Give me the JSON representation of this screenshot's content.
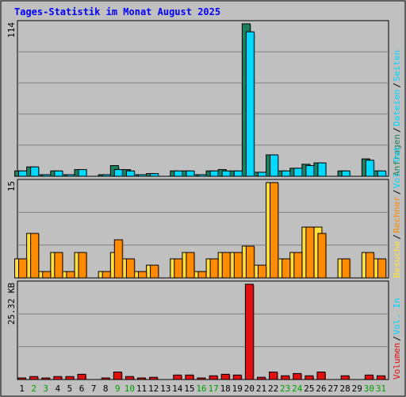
{
  "chart_data": {
    "type": "bar",
    "title": "Tages-Statistik im Monat August 2025",
    "days": [
      "1",
      "2",
      "3",
      "4",
      "5",
      "6",
      "7",
      "8",
      "9",
      "10",
      "11",
      "12",
      "13",
      "14",
      "15",
      "16",
      "17",
      "18",
      "19",
      "20",
      "21",
      "22",
      "23",
      "24",
      "25",
      "26",
      "27",
      "28",
      "29",
      "30",
      "31"
    ],
    "weekend_days": [
      "2",
      "3",
      "9",
      "10",
      "16",
      "17",
      "23",
      "24",
      "30",
      "31"
    ],
    "colors": {
      "anfragen": "#1f8060",
      "dateien": "#00d8ff",
      "besuche": "#ffe040",
      "rechner": "#ff8c00",
      "volumen": "#e01010",
      "day_weekday": "#000000",
      "day_weekend": "#00a000",
      "background": "#c0c0c0",
      "grid": "#808080"
    },
    "panels": [
      {
        "id": "requests",
        "ymax_label": "114",
        "ymax": 114,
        "series": [
          {
            "name": "Anfragen",
            "key": "anfragen",
            "values": [
              4,
              7,
              1,
              4,
              1,
              5,
              0,
              1,
              8,
              5,
              1,
              2,
              0,
              4,
              4,
              1,
              4,
              5,
              4,
              114,
              3,
              16,
              4,
              6,
              9,
              10,
              0,
              4,
              0,
              13,
              4
            ]
          },
          {
            "name": "Dateien",
            "key": "dateien",
            "values": [
              4,
              7,
              1,
              4,
              1,
              5,
              0,
              1,
              5,
              4,
              1,
              2,
              0,
              4,
              4,
              1,
              4,
              4,
              4,
              108,
              3,
              16,
              4,
              6,
              8,
              10,
              0,
              4,
              0,
              12,
              4
            ]
          }
        ],
        "legend": [
          {
            "text": "Anfragen",
            "key": "anfragen"
          },
          {
            "text": "Dateien",
            "key": "dateien"
          },
          {
            "text": "Seiten",
            "key": "dateien"
          }
        ]
      },
      {
        "id": "visits",
        "ymax_label": "15",
        "ymax": 15,
        "series": [
          {
            "name": "Besuche",
            "key": "besuche",
            "values": [
              3,
              7,
              1,
              4,
              1,
              4,
              0,
              1,
              4,
              3,
              1,
              2,
              0,
              3,
              4,
              1,
              3,
              4,
              4,
              5,
              2,
              15,
              3,
              4,
              8,
              8,
              0,
              3,
              0,
              4,
              3
            ]
          },
          {
            "name": "Rechner",
            "key": "rechner",
            "values": [
              3,
              7,
              1,
              4,
              1,
              4,
              0,
              1,
              6,
              3,
              1,
              2,
              0,
              3,
              4,
              1,
              3,
              4,
              4,
              5,
              2,
              15,
              3,
              4,
              8,
              7,
              0,
              3,
              0,
              4,
              3
            ]
          }
        ],
        "legend": [
          {
            "text": "Besuche",
            "key": "besuche"
          },
          {
            "text": "Rechner",
            "key": "rechner"
          },
          {
            "text": "Vol. Out",
            "key": "dateien"
          }
        ]
      },
      {
        "id": "volume",
        "ymax_label": "25.32 KB",
        "ymax": 25.32,
        "series": [
          {
            "name": "Volumen",
            "key": "volumen",
            "values": [
              0.4,
              0.8,
              0.4,
              0.8,
              0.8,
              1.4,
              0,
              0.4,
              2.0,
              0.8,
              0.4,
              0.6,
              0,
              1.2,
              1.2,
              0.4,
              1.0,
              1.4,
              1.2,
              25.32,
              0.6,
              2.0,
              1.0,
              1.6,
              1.0,
              2.0,
              0,
              1.0,
              0,
              1.2,
              1.0
            ]
          }
        ],
        "legend": [
          {
            "text": "Volumen",
            "key": "volumen"
          },
          {
            "text": "Vol. In",
            "key": "dateien"
          }
        ]
      }
    ]
  }
}
